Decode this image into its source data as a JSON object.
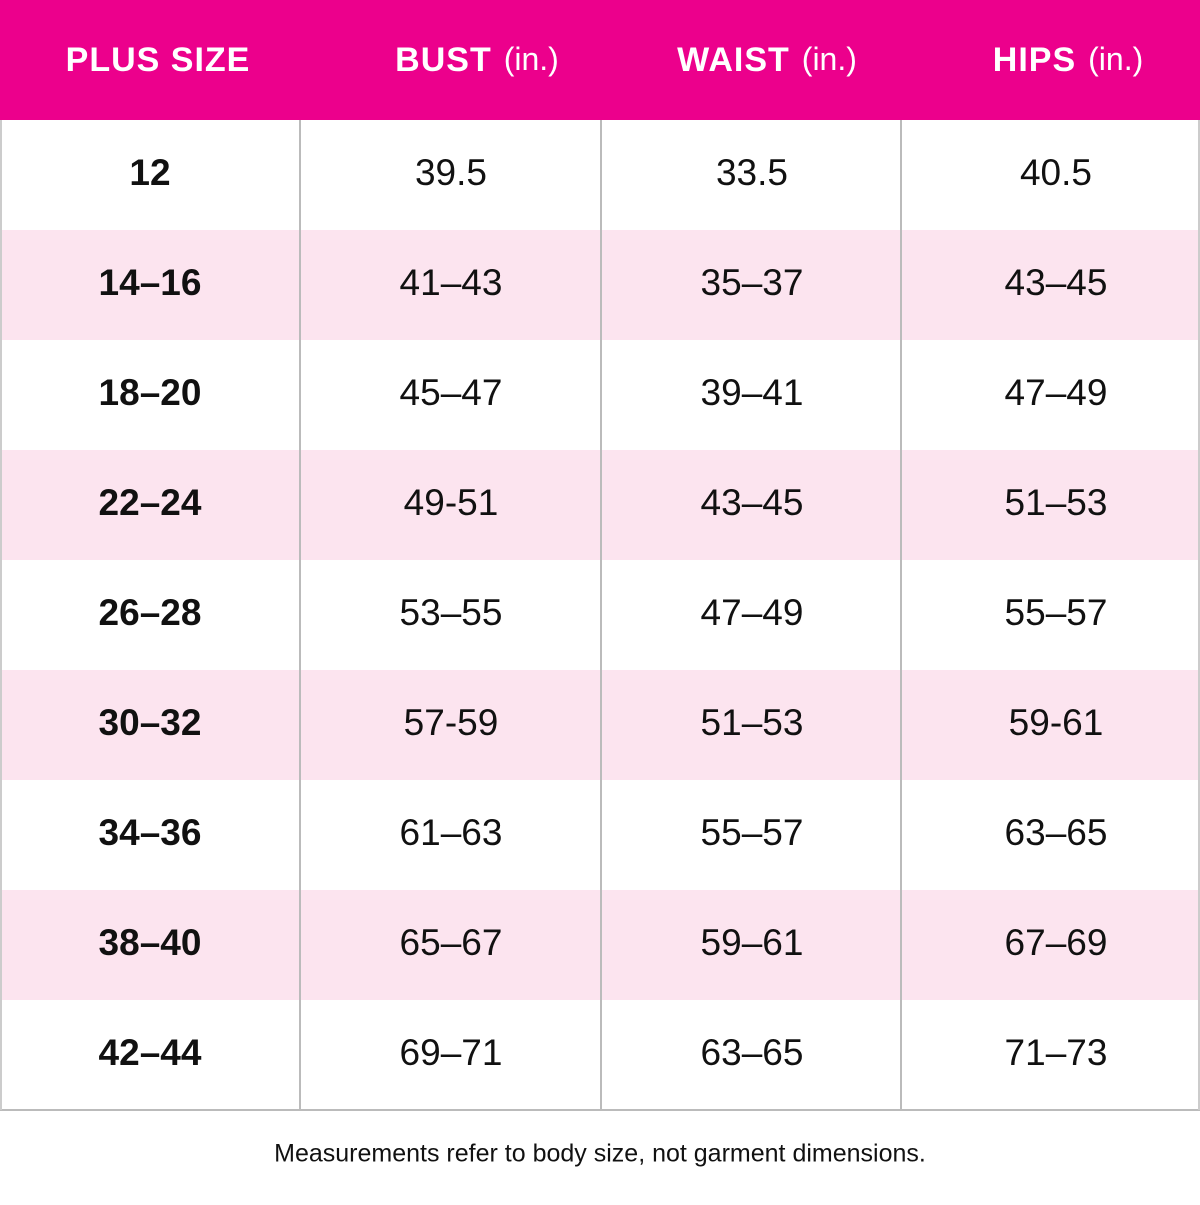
{
  "table": {
    "header": [
      {
        "label": "PLUS SIZE"
      },
      {
        "label": "BUST",
        "unit": "(in.)"
      },
      {
        "label": "WAIST",
        "unit": "(in.)"
      },
      {
        "label": "HIPS",
        "unit": "(in.)"
      }
    ],
    "rows": [
      [
        "12",
        "39.5",
        "33.5",
        "40.5"
      ],
      [
        "14–16",
        "41–43",
        "35–37",
        "43–45"
      ],
      [
        "18–20",
        "45–47",
        "39–41",
        "47–49"
      ],
      [
        "22–24",
        "49-51",
        "43–45",
        "51–53"
      ],
      [
        "26–28",
        "53–55",
        "47–49",
        "55–57"
      ],
      [
        "30–32",
        "57-59",
        "51–53",
        "59-61"
      ],
      [
        "34–36",
        "61–63",
        "55–57",
        "63–65"
      ],
      [
        "38–40",
        "65–67",
        "59–61",
        "67–69"
      ],
      [
        "42–44",
        "69–71",
        "63–65",
        "71–73"
      ]
    ]
  },
  "footnote": "Measurements refer to body size, not garment dimensions."
}
